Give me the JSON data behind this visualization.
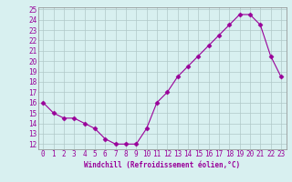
{
  "x": [
    0,
    1,
    2,
    3,
    4,
    5,
    6,
    7,
    8,
    9,
    10,
    11,
    12,
    13,
    14,
    15,
    16,
    17,
    18,
    19,
    20,
    21,
    22,
    23
  ],
  "y": [
    16,
    15,
    14.5,
    14.5,
    14,
    13.5,
    12.5,
    12,
    12,
    12,
    13.5,
    16,
    17,
    18.5,
    19.5,
    20.5,
    21.5,
    22.5,
    23.5,
    24.5,
    24.5,
    23.5,
    20.5,
    18.5
  ],
  "line_color": "#990099",
  "marker": "D",
  "marker_size": 2.5,
  "bg_color": "#d8f0f0",
  "grid_color": "#b0c8c8",
  "xlabel": "Windchill (Refroidissement éolien,°C)",
  "xlabel_color": "#990099",
  "tick_color": "#990099",
  "label_fontsize": 5.5,
  "tick_fontsize": 5.5,
  "ylim": [
    11.5,
    25.2
  ],
  "xlim": [
    -0.5,
    23.5
  ],
  "yticks": [
    12,
    13,
    14,
    15,
    16,
    17,
    18,
    19,
    20,
    21,
    22,
    23,
    24,
    25
  ],
  "xticks": [
    0,
    1,
    2,
    3,
    4,
    5,
    6,
    7,
    8,
    9,
    10,
    11,
    12,
    13,
    14,
    15,
    16,
    17,
    18,
    19,
    20,
    21,
    22,
    23
  ]
}
